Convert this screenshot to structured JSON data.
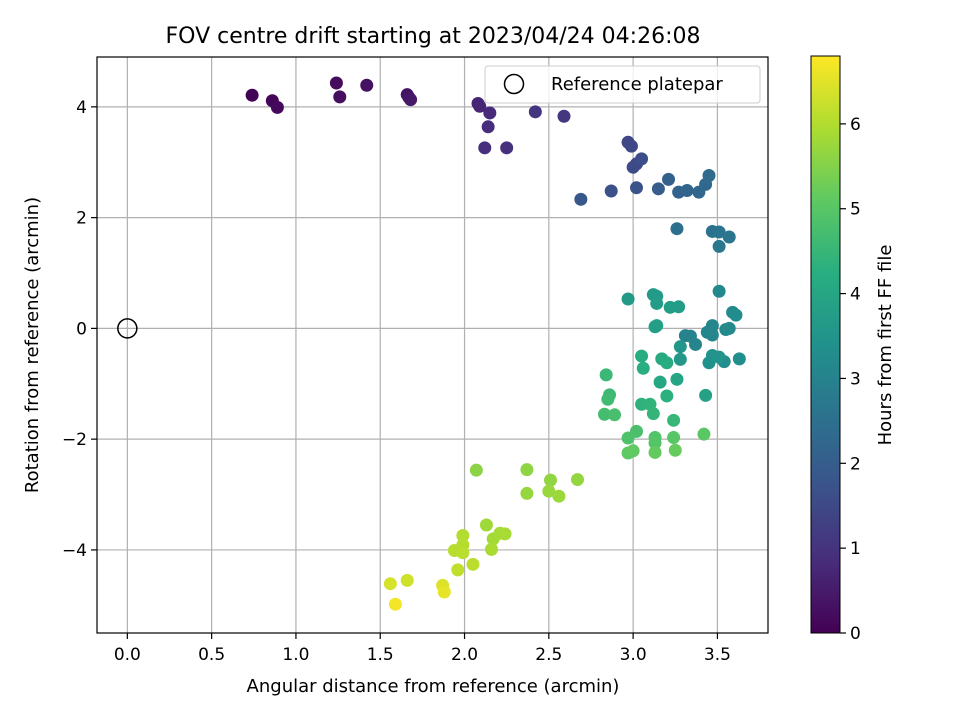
{
  "chart_data": {
    "type": "scatter",
    "title": "FOV centre drift starting at 2023/04/24 04:26:08",
    "xlabel": "Angular distance from reference (arcmin)",
    "ylabel": "Rotation from reference (arcmin)",
    "xlim": [
      -0.18,
      3.8
    ],
    "ylim": [
      -5.5,
      4.9
    ],
    "xticks": [
      0.0,
      0.5,
      1.0,
      1.5,
      2.0,
      2.5,
      3.0,
      3.5
    ],
    "xtick_labels": [
      "0.0",
      "0.5",
      "1.0",
      "1.5",
      "2.0",
      "2.5",
      "3.0",
      "3.5"
    ],
    "yticks": [
      -4,
      -2,
      0,
      2,
      4
    ],
    "ytick_labels": [
      "−4",
      "−2",
      "0",
      "2",
      "4"
    ],
    "grid": true,
    "legend": {
      "placement": "upper right",
      "entries": [
        "Reference platepar"
      ]
    },
    "reference_point": {
      "name": "Reference platepar",
      "x": 0.0,
      "y": 0.0
    },
    "colorbar": {
      "label": "Hours from first FF file",
      "colormap": "viridis",
      "range": [
        0,
        6.8
      ],
      "ticks": [
        0,
        1,
        2,
        3,
        4,
        5,
        6
      ],
      "tick_labels": [
        "0",
        "1",
        "2",
        "3",
        "4",
        "5",
        "6"
      ]
    },
    "series": [
      {
        "colormap_value": "hours",
        "points": [
          {
            "x": 0.74,
            "y": 4.21,
            "c": 0.05
          },
          {
            "x": 0.86,
            "y": 4.11,
            "c": 0.1
          },
          {
            "x": 0.89,
            "y": 3.99,
            "c": 0.15
          },
          {
            "x": 1.24,
            "y": 4.43,
            "c": 0.2
          },
          {
            "x": 1.26,
            "y": 4.18,
            "c": 0.25
          },
          {
            "x": 1.42,
            "y": 4.39,
            "c": 0.3
          },
          {
            "x": 1.66,
            "y": 4.22,
            "c": 0.35
          },
          {
            "x": 1.67,
            "y": 4.17,
            "c": 0.4
          },
          {
            "x": 1.68,
            "y": 4.13,
            "c": 0.45
          },
          {
            "x": 2.08,
            "y": 4.06,
            "c": 0.7
          },
          {
            "x": 2.09,
            "y": 4.01,
            "c": 0.72
          },
          {
            "x": 2.15,
            "y": 3.89,
            "c": 0.8
          },
          {
            "x": 2.14,
            "y": 3.64,
            "c": 0.85
          },
          {
            "x": 2.12,
            "y": 3.26,
            "c": 0.9
          },
          {
            "x": 2.25,
            "y": 3.26,
            "c": 0.95
          },
          {
            "x": 2.42,
            "y": 3.91,
            "c": 1.0
          },
          {
            "x": 2.59,
            "y": 3.83,
            "c": 1.05
          },
          {
            "x": 2.97,
            "y": 3.36,
            "c": 1.4
          },
          {
            "x": 2.99,
            "y": 3.29,
            "c": 1.45
          },
          {
            "x": 3.0,
            "y": 2.91,
            "c": 1.55
          },
          {
            "x": 3.02,
            "y": 2.97,
            "c": 1.5
          },
          {
            "x": 3.05,
            "y": 3.06,
            "c": 1.6
          },
          {
            "x": 2.87,
            "y": 2.48,
            "c": 1.65
          },
          {
            "x": 3.02,
            "y": 2.54,
            "c": 1.75
          },
          {
            "x": 2.69,
            "y": 2.33,
            "c": 1.85
          },
          {
            "x": 3.15,
            "y": 2.52,
            "c": 2.0
          },
          {
            "x": 3.21,
            "y": 2.69,
            "c": 2.1
          },
          {
            "x": 3.27,
            "y": 2.46,
            "c": 2.15
          },
          {
            "x": 3.32,
            "y": 2.49,
            "c": 2.2
          },
          {
            "x": 3.39,
            "y": 2.46,
            "c": 2.25
          },
          {
            "x": 3.43,
            "y": 2.6,
            "c": 2.3
          },
          {
            "x": 3.45,
            "y": 2.76,
            "c": 2.35
          },
          {
            "x": 3.26,
            "y": 1.8,
            "c": 2.5
          },
          {
            "x": 3.47,
            "y": 1.75,
            "c": 2.55
          },
          {
            "x": 3.51,
            "y": 1.74,
            "c": 2.6
          },
          {
            "x": 3.57,
            "y": 1.65,
            "c": 2.65
          },
          {
            "x": 3.51,
            "y": 1.48,
            "c": 2.7
          },
          {
            "x": 3.31,
            "y": -0.13,
            "c": 3.0
          },
          {
            "x": 3.34,
            "y": -0.14,
            "c": 3.02
          },
          {
            "x": 3.37,
            "y": -0.29,
            "c": 3.05
          },
          {
            "x": 3.44,
            "y": -0.07,
            "c": 3.08
          },
          {
            "x": 3.47,
            "y": -0.12,
            "c": 3.1
          },
          {
            "x": 3.47,
            "y": 0.05,
            "c": 3.12
          },
          {
            "x": 3.51,
            "y": 0.67,
            "c": 3.15
          },
          {
            "x": 3.55,
            "y": -0.02,
            "c": 3.18
          },
          {
            "x": 3.57,
            "y": 0.0,
            "c": 3.2
          },
          {
            "x": 3.59,
            "y": 0.29,
            "c": 3.22
          },
          {
            "x": 3.61,
            "y": 0.24,
            "c": 3.25
          },
          {
            "x": 3.54,
            "y": -0.6,
            "c": 3.3
          },
          {
            "x": 3.63,
            "y": -0.55,
            "c": 3.35
          },
          {
            "x": 3.45,
            "y": -0.62,
            "c": 3.4
          },
          {
            "x": 3.47,
            "y": -0.49,
            "c": 3.45
          },
          {
            "x": 3.51,
            "y": -0.52,
            "c": 3.5
          },
          {
            "x": 3.28,
            "y": -0.33,
            "c": 3.55
          },
          {
            "x": 3.28,
            "y": -0.56,
            "c": 3.6
          },
          {
            "x": 2.97,
            "y": 0.53,
            "c": 3.65
          },
          {
            "x": 3.12,
            "y": 0.61,
            "c": 3.68
          },
          {
            "x": 3.14,
            "y": 0.58,
            "c": 3.7
          },
          {
            "x": 3.14,
            "y": 0.45,
            "c": 3.72
          },
          {
            "x": 3.22,
            "y": 0.38,
            "c": 3.74
          },
          {
            "x": 3.27,
            "y": 0.39,
            "c": 3.76
          },
          {
            "x": 3.13,
            "y": 0.03,
            "c": 3.78
          },
          {
            "x": 3.14,
            "y": 0.05,
            "c": 3.8
          },
          {
            "x": 3.43,
            "y": -1.21,
            "c": 3.9
          },
          {
            "x": 3.26,
            "y": -0.92,
            "c": 4.0
          },
          {
            "x": 3.16,
            "y": -0.97,
            "c": 4.05
          },
          {
            "x": 3.17,
            "y": -0.55,
            "c": 4.1
          },
          {
            "x": 3.2,
            "y": -0.62,
            "c": 4.15
          },
          {
            "x": 3.05,
            "y": -0.5,
            "c": 4.2
          },
          {
            "x": 3.06,
            "y": -0.72,
            "c": 4.25
          },
          {
            "x": 3.2,
            "y": -1.22,
            "c": 4.3
          },
          {
            "x": 3.05,
            "y": -1.37,
            "c": 4.35
          },
          {
            "x": 3.1,
            "y": -1.37,
            "c": 4.4
          },
          {
            "x": 3.12,
            "y": -1.54,
            "c": 4.45
          },
          {
            "x": 3.24,
            "y": -1.66,
            "c": 4.5
          },
          {
            "x": 2.84,
            "y": -0.84,
            "c": 4.55
          },
          {
            "x": 2.86,
            "y": -1.2,
            "c": 4.6
          },
          {
            "x": 2.85,
            "y": -1.28,
            "c": 4.65
          },
          {
            "x": 2.83,
            "y": -1.55,
            "c": 4.7
          },
          {
            "x": 2.89,
            "y": -1.56,
            "c": 4.75
          },
          {
            "x": 3.02,
            "y": -1.86,
            "c": 4.8
          },
          {
            "x": 2.97,
            "y": -1.98,
            "c": 4.85
          },
          {
            "x": 3.13,
            "y": -1.97,
            "c": 4.9
          },
          {
            "x": 3.13,
            "y": -2.07,
            "c": 4.95
          },
          {
            "x": 3.24,
            "y": -1.97,
            "c": 5.0
          },
          {
            "x": 3.42,
            "y": -1.91,
            "c": 5.05
          },
          {
            "x": 2.97,
            "y": -2.25,
            "c": 5.1
          },
          {
            "x": 3.0,
            "y": -2.21,
            "c": 5.12
          },
          {
            "x": 3.13,
            "y": -2.24,
            "c": 5.15
          },
          {
            "x": 3.25,
            "y": -2.2,
            "c": 5.18
          },
          {
            "x": 2.07,
            "y": -2.56,
            "c": 5.6
          },
          {
            "x": 2.37,
            "y": -2.55,
            "c": 5.62
          },
          {
            "x": 2.51,
            "y": -2.74,
            "c": 5.65
          },
          {
            "x": 2.67,
            "y": -2.73,
            "c": 5.68
          },
          {
            "x": 2.37,
            "y": -2.98,
            "c": 5.7
          },
          {
            "x": 2.5,
            "y": -2.94,
            "c": 5.72
          },
          {
            "x": 2.56,
            "y": -3.03,
            "c": 5.75
          },
          {
            "x": 2.13,
            "y": -3.55,
            "c": 5.8
          },
          {
            "x": 2.17,
            "y": -3.8,
            "c": 5.85
          },
          {
            "x": 2.21,
            "y": -3.7,
            "c": 5.88
          },
          {
            "x": 2.24,
            "y": -3.71,
            "c": 5.9
          },
          {
            "x": 2.16,
            "y": -3.99,
            "c": 5.92
          },
          {
            "x": 1.99,
            "y": -3.74,
            "c": 6.0
          },
          {
            "x": 1.99,
            "y": -3.91,
            "c": 6.02
          },
          {
            "x": 1.94,
            "y": -4.01,
            "c": 6.05
          },
          {
            "x": 1.99,
            "y": -4.05,
            "c": 6.08
          },
          {
            "x": 2.05,
            "y": -4.26,
            "c": 6.1
          },
          {
            "x": 1.96,
            "y": -4.36,
            "c": 6.15
          },
          {
            "x": 1.66,
            "y": -4.55,
            "c": 6.3
          },
          {
            "x": 1.56,
            "y": -4.61,
            "c": 6.4
          },
          {
            "x": 1.87,
            "y": -4.64,
            "c": 6.45
          },
          {
            "x": 1.88,
            "y": -4.76,
            "c": 6.55
          },
          {
            "x": 1.59,
            "y": -4.98,
            "c": 6.7
          }
        ]
      }
    ]
  }
}
